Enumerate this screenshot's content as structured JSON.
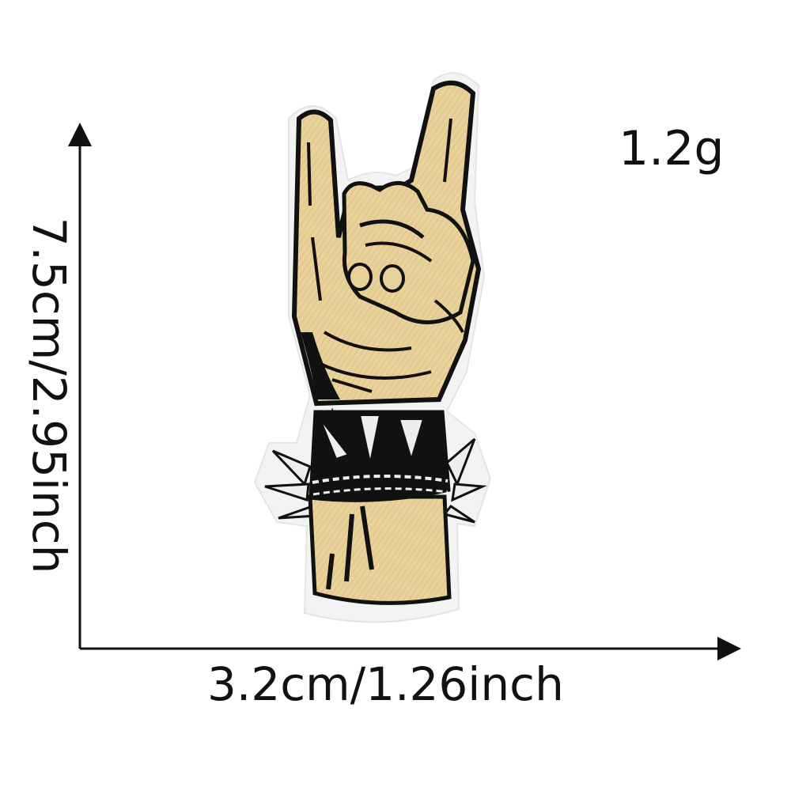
{
  "product": {
    "weight": "1.2g",
    "height_dimension": "7.5cm/2.95inch",
    "width_dimension": "3.2cm/1.26inch",
    "subject": "rock-on-hand-embroidered-patch"
  },
  "colors": {
    "background": "#ffffff",
    "felt_border": "#f2f2f2",
    "embroidery_tan": "#e9d29a",
    "embroidery_black": "#111111",
    "spikes": "#eeeeee",
    "axis": "#111111"
  }
}
